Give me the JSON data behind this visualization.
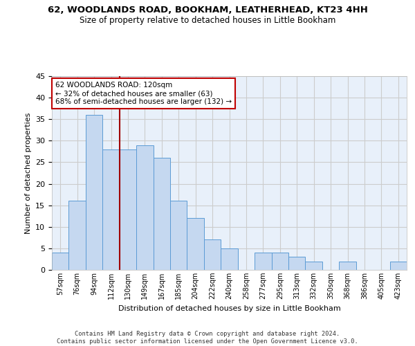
{
  "title1": "62, WOODLANDS ROAD, BOOKHAM, LEATHERHEAD, KT23 4HH",
  "title2": "Size of property relative to detached houses in Little Bookham",
  "xlabel": "Distribution of detached houses by size in Little Bookham",
  "ylabel": "Number of detached properties",
  "categories": [
    "57sqm",
    "76sqm",
    "94sqm",
    "112sqm",
    "130sqm",
    "149sqm",
    "167sqm",
    "185sqm",
    "204sqm",
    "222sqm",
    "240sqm",
    "258sqm",
    "277sqm",
    "295sqm",
    "313sqm",
    "332sqm",
    "350sqm",
    "368sqm",
    "386sqm",
    "405sqm",
    "423sqm"
  ],
  "values": [
    4,
    16,
    36,
    28,
    28,
    29,
    26,
    16,
    12,
    7,
    5,
    0,
    4,
    4,
    3,
    2,
    0,
    2,
    0,
    0,
    2
  ],
  "bar_color": "#c5d8f0",
  "bar_edge_color": "#5b9bd5",
  "vline_x": 3.5,
  "vline_color": "#a00000",
  "annotation_text": "62 WOODLANDS ROAD: 120sqm\n← 32% of detached houses are smaller (63)\n68% of semi-detached houses are larger (132) →",
  "annotation_box_color": "#ffffff",
  "annotation_box_edge": "#c00000",
  "ylim": [
    0,
    45
  ],
  "yticks": [
    0,
    5,
    10,
    15,
    20,
    25,
    30,
    35,
    40,
    45
  ],
  "grid_color": "#cccccc",
  "bg_color": "#e8f0fa",
  "footer": "Contains HM Land Registry data © Crown copyright and database right 2024.\nContains public sector information licensed under the Open Government Licence v3.0."
}
